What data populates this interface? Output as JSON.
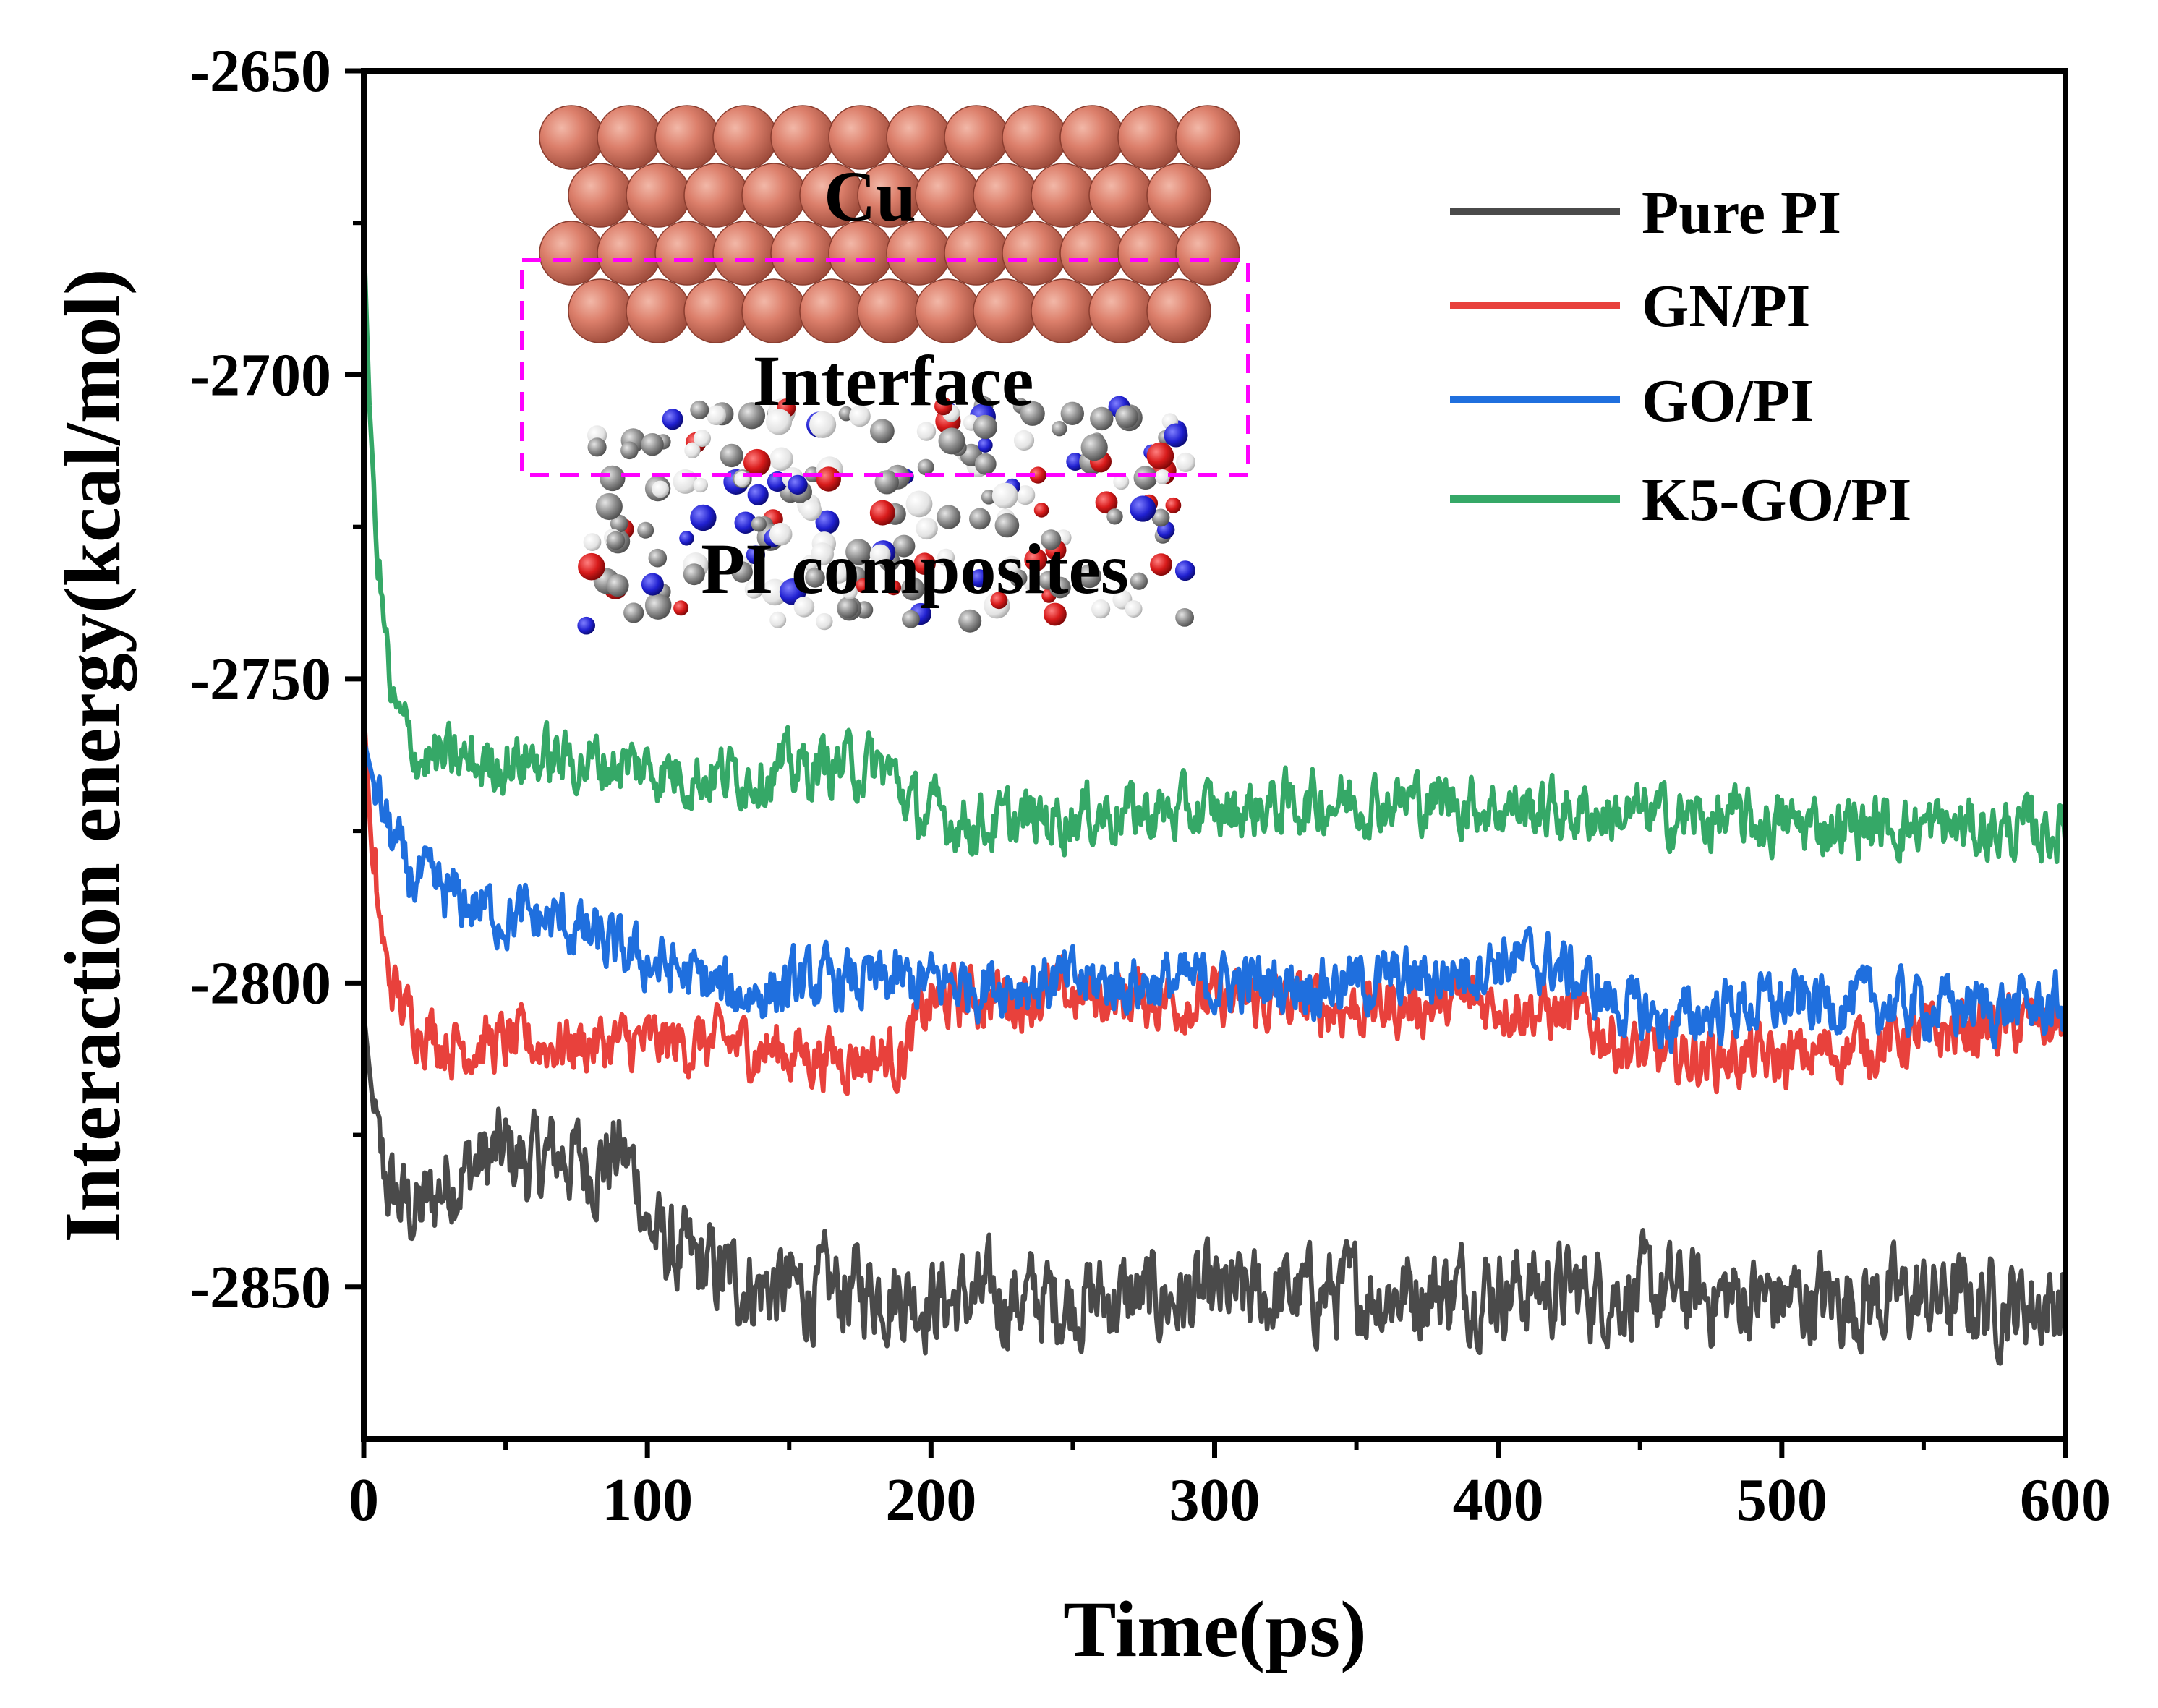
{
  "chart_data": {
    "type": "line",
    "title": "",
    "xlabel": "Time(ps)",
    "ylabel": "Interaction energy(kcal/mol)",
    "xlim": [
      0,
      600
    ],
    "ylim": [
      -2875,
      -2650
    ],
    "xticks": [
      0,
      100,
      200,
      300,
      400,
      500,
      600
    ],
    "yticks": [
      -2650,
      -2700,
      -2750,
      -2800,
      -2850
    ],
    "grid": false,
    "legend_position": "top-right",
    "series": [
      {
        "name": "Pure PI",
        "color": "#4a4a4a",
        "start_value": -2805,
        "points": [
          [
            0,
            -2805
          ],
          [
            5,
            -2828
          ],
          [
            10,
            -2835
          ],
          [
            20,
            -2838
          ],
          [
            30,
            -2832
          ],
          [
            40,
            -2830
          ],
          [
            50,
            -2828
          ],
          [
            60,
            -2830
          ],
          [
            70,
            -2828
          ],
          [
            80,
            -2830
          ],
          [
            90,
            -2828
          ],
          [
            97,
            -2832
          ],
          [
            100,
            -2840
          ],
          [
            110,
            -2845
          ],
          [
            125,
            -2848
          ],
          [
            140,
            -2850
          ],
          [
            160,
            -2851
          ],
          [
            180,
            -2850
          ],
          [
            200,
            -2852
          ],
          [
            250,
            -2852
          ],
          [
            300,
            -2852
          ],
          [
            350,
            -2851
          ],
          [
            400,
            -2850
          ],
          [
            450,
            -2851
          ],
          [
            500,
            -2852
          ],
          [
            550,
            -2852
          ],
          [
            600,
            -2853
          ]
        ]
      },
      {
        "name": "GN/PI",
        "color": "#e8413c",
        "start_value": -2755,
        "points": [
          [
            0,
            -2755
          ],
          [
            3,
            -2780
          ],
          [
            8,
            -2798
          ],
          [
            15,
            -2805
          ],
          [
            30,
            -2810
          ],
          [
            60,
            -2810
          ],
          [
            100,
            -2810
          ],
          [
            130,
            -2810
          ],
          [
            160,
            -2812
          ],
          [
            190,
            -2812
          ],
          [
            200,
            -2803
          ],
          [
            230,
            -2802
          ],
          [
            260,
            -2802
          ],
          [
            300,
            -2803
          ],
          [
            350,
            -2804
          ],
          [
            400,
            -2803
          ],
          [
            430,
            -2806
          ],
          [
            450,
            -2812
          ],
          [
            480,
            -2812
          ],
          [
            500,
            -2813
          ],
          [
            530,
            -2810
          ],
          [
            560,
            -2808
          ],
          [
            600,
            -2806
          ]
        ]
      },
      {
        "name": "GO/PI",
        "color": "#1f6fde",
        "start_value": -2760,
        "points": [
          [
            0,
            -2760
          ],
          [
            5,
            -2770
          ],
          [
            15,
            -2782
          ],
          [
            30,
            -2786
          ],
          [
            50,
            -2789
          ],
          [
            70,
            -2790
          ],
          [
            90,
            -2795
          ],
          [
            110,
            -2798
          ],
          [
            130,
            -2802
          ],
          [
            160,
            -2800
          ],
          [
            190,
            -2800
          ],
          [
            220,
            -2800
          ],
          [
            260,
            -2800
          ],
          [
            300,
            -2800
          ],
          [
            350,
            -2800
          ],
          [
            380,
            -2799
          ],
          [
            400,
            -2796
          ],
          [
            420,
            -2797
          ],
          [
            440,
            -2803
          ],
          [
            460,
            -2807
          ],
          [
            480,
            -2804
          ],
          [
            520,
            -2803
          ],
          [
            560,
            -2804
          ],
          [
            600,
            -2804
          ]
        ]
      },
      {
        "name": "K5-GO/PI",
        "color": "#35a867",
        "start_value": -2677,
        "points": [
          [
            0,
            -2677
          ],
          [
            2,
            -2705
          ],
          [
            5,
            -2730
          ],
          [
            10,
            -2755
          ],
          [
            20,
            -2763
          ],
          [
            40,
            -2764
          ],
          [
            60,
            -2763
          ],
          [
            90,
            -2764
          ],
          [
            120,
            -2766
          ],
          [
            150,
            -2765
          ],
          [
            170,
            -2764
          ],
          [
            185,
            -2765
          ],
          [
            195,
            -2772
          ],
          [
            220,
            -2774
          ],
          [
            260,
            -2772
          ],
          [
            300,
            -2772
          ],
          [
            340,
            -2770
          ],
          [
            380,
            -2770
          ],
          [
            400,
            -2771
          ],
          [
            430,
            -2772
          ],
          [
            470,
            -2773
          ],
          [
            500,
            -2774
          ],
          [
            540,
            -2774
          ],
          [
            580,
            -2775
          ],
          [
            600,
            -2775
          ]
        ]
      }
    ],
    "inset": {
      "labels": [
        "Cu",
        "Interface",
        "PI composites"
      ],
      "box_color": "#ff00ff"
    }
  }
}
